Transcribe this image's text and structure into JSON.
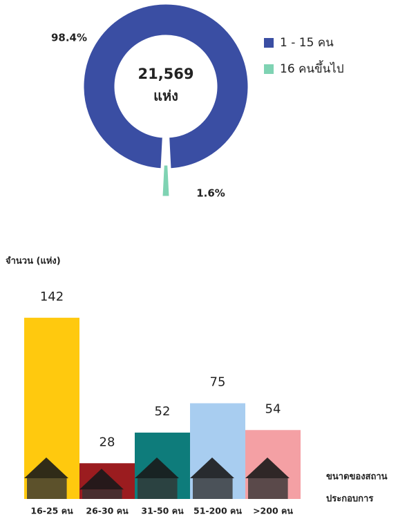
{
  "chart_data": [
    {
      "type": "donut",
      "categories": [
        "1 - 15 คน",
        "16 คนขึ้นไป"
      ],
      "values": [
        98.4,
        1.6
      ],
      "value_labels": [
        "98.4%",
        "1.6%"
      ],
      "colors": [
        "#3a4ea3",
        "#7fd3b3"
      ],
      "center_text": [
        "21,569",
        "แห่ง"
      ],
      "legend": "right"
    },
    {
      "type": "bar",
      "y_label": "จำนวน (แห่ง)",
      "x_label": [
        "ขนาดของสถาน",
        "ประกอบการ"
      ],
      "categories": [
        "16-25 คน",
        "26-30 คน",
        "31-50 คน",
        "51-200 คน",
        ">200 คน"
      ],
      "values": [
        142,
        28,
        52,
        75,
        54
      ],
      "colors": [
        "#ffc90e",
        "#9b1c1f",
        "#0e7c7b",
        "#a8cdf0",
        "#f4a0a4"
      ],
      "ylim": [
        0,
        150
      ]
    }
  ]
}
